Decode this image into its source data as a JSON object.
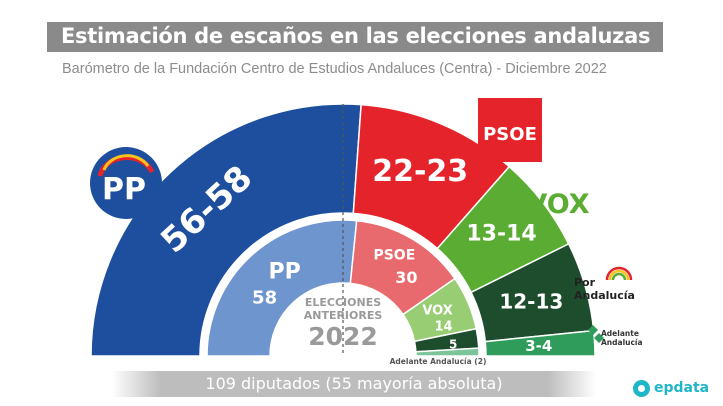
{
  "title": "Estimación de escaños en las elecciones andaluzas",
  "subtitle": "Barómetro de la Fundación Centro de Estudios Andaluces (Centra) - Diciembre 2022",
  "footer": "109 diputados (55 mayoría absoluta)",
  "brand": "epdata",
  "colors": {
    "pp": "#1d4f9e",
    "pp_prev": "#6f95cf",
    "psoe": "#e4232a",
    "psoe_prev": "#e96a6e",
    "vox": "#5aad32",
    "vox_prev": "#98cd74",
    "por_andalucia": "#1d4d2c",
    "adelante": "#2f9c5b",
    "adelante_prev": "#7cc49a",
    "title_bar": "#8a8a8a"
  },
  "chart_data": {
    "type": "hemicycle",
    "total_seats": 109,
    "majority": 55,
    "estimate": {
      "series": [
        {
          "party": "PP",
          "label": "56-58",
          "value": 57
        },
        {
          "party": "PSOE",
          "label": "22-23",
          "value": 22.5
        },
        {
          "party": "VOX",
          "label": "13-14",
          "value": 13.5
        },
        {
          "party": "Por Andalucía",
          "label": "12-13",
          "value": 12.5
        },
        {
          "party": "Adelante Andalucía",
          "label": "3-4",
          "value": 3.5
        }
      ]
    },
    "previous": {
      "title_line1": "ELECCIONES",
      "title_line2": "ANTERIORES",
      "year": "2022",
      "series": [
        {
          "party": "PP",
          "label": "58",
          "value": 58
        },
        {
          "party": "PSOE",
          "label": "30",
          "value": 30
        },
        {
          "party": "VOX",
          "label": "14",
          "value": 14
        },
        {
          "party": "Por Andalucía",
          "label": "5",
          "value": 5
        },
        {
          "party": "Adelante Andalucía",
          "label": "2",
          "value": 2
        }
      ],
      "adelante_note": "Adelante Andalucía (2)"
    }
  },
  "logos": {
    "pp": "PP",
    "psoe": "PSOE",
    "vox": "VOX",
    "por_andalucia_line1": "Por",
    "por_andalucia_line2": "Andalucía",
    "adelante_line1": "Adelante",
    "adelante_line2": "Andalucía"
  }
}
